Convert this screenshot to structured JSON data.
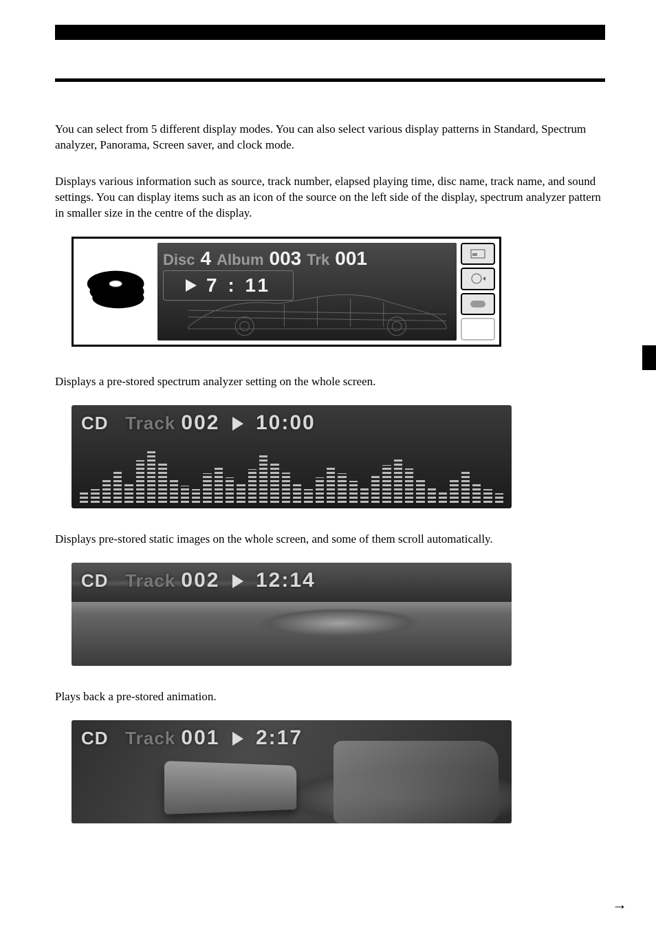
{
  "intro": {
    "text": "You can select from 5 different display modes. You can also select various display patterns in Standard, Spectrum analyzer, Panorama, Screen saver, and clock mode."
  },
  "standard": {
    "desc": "Displays various information such as source, track number, elapsed playing time, disc name, track name, and sound settings. You can display items such as an icon of the source on the left side of the display, spectrum analyzer pattern in smaller size in the centre of the display.",
    "disc_label": "Disc",
    "disc_value": "4",
    "album_label": "Album",
    "album_value": "003",
    "trk_label": "Trk",
    "trk_value": "001",
    "time": "7 : 11"
  },
  "spectrum": {
    "desc": "Displays a pre-stored spectrum analyzer setting on the whole screen.",
    "source": "CD",
    "track_label": "Track",
    "track_value": "002",
    "time": "10:00",
    "bars": [
      18,
      22,
      38,
      52,
      30,
      70,
      86,
      64,
      40,
      28,
      22,
      48,
      60,
      42,
      30,
      55,
      80,
      66,
      50,
      30,
      22,
      42,
      58,
      48,
      36,
      24,
      44,
      62,
      72,
      56,
      38,
      26,
      18,
      40,
      52,
      34,
      22,
      16
    ]
  },
  "panorama": {
    "desc": "Displays pre-stored static images on the whole screen, and some of them scroll automatically.",
    "source": "CD",
    "track_label": "Track",
    "track_value": "002",
    "time": "12:14"
  },
  "screensaver": {
    "desc": "Plays back a pre-stored animation.",
    "source": "CD",
    "track_label": "Track",
    "track_value": "001",
    "time": "2:17"
  },
  "styling": {
    "page_bg": "#ffffff",
    "text_color": "#000000",
    "display_bg_top": "#3a3a3a",
    "display_bg_bottom": "#1a1a1a",
    "display_text_light": "#d8d8d8",
    "display_text_dim": "#777777",
    "border_color": "#000000",
    "body_fontsize": 17,
    "overlay_fontsize": 26,
    "overlay_big_fontsize": 30,
    "standard_frame_w": 625,
    "standard_frame_h": 160,
    "dark_display_w": 640,
    "dark_display_h": 150
  }
}
